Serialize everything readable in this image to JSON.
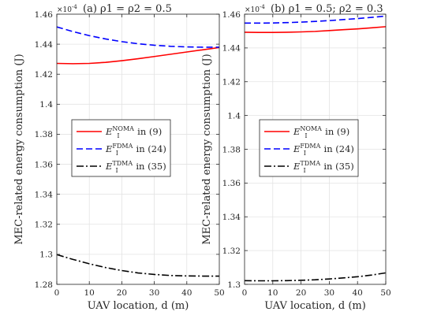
{
  "chart_data": [
    {
      "type": "line",
      "title": "(a) ρ1 = ρ2 = 0.5",
      "xlabel": "UAV location, d (m)",
      "ylabel": "MEC-related energy consumption (J)",
      "y_exponent": "×10^-4",
      "xlim": [
        0,
        50
      ],
      "ylim": [
        1.28,
        1.46
      ],
      "xticks": [
        0,
        10,
        20,
        30,
        40,
        50
      ],
      "yticks": [
        1.28,
        1.3,
        1.32,
        1.34,
        1.36,
        1.38,
        1.4,
        1.42,
        1.44,
        1.46
      ],
      "ytick_labels": [
        "1.28",
        "1.3",
        "1.32",
        "1.34",
        "1.36",
        "1.38",
        "1.4",
        "1.42",
        "1.44",
        "1.46"
      ],
      "grid": true,
      "legend_position": "center-right",
      "x": [
        0,
        5,
        10,
        15,
        20,
        25,
        30,
        35,
        40,
        45,
        50
      ],
      "series": [
        {
          "name": "E_I^NOMA in (9)",
          "color": "#ff0000",
          "dash": "solid",
          "values": [
            1.4272,
            1.427,
            1.4272,
            1.4279,
            1.429,
            1.4303,
            1.4318,
            1.4333,
            1.4348,
            1.4363,
            1.4378
          ]
        },
        {
          "name": "E_I^FDMA in (24)",
          "color": "#0000ff",
          "dash": "dashed",
          "values": [
            1.4515,
            1.4484,
            1.4457,
            1.4435,
            1.4417,
            1.4403,
            1.4393,
            1.4386,
            1.4382,
            1.438,
            1.438
          ]
        },
        {
          "name": "E_I^TDMA in (35)",
          "color": "#000000",
          "dash": "dashdot",
          "values": [
            1.2998,
            1.2966,
            1.2937,
            1.2912,
            1.2892,
            1.2876,
            1.2866,
            1.2859,
            1.2856,
            1.2855,
            1.2855
          ]
        }
      ]
    },
    {
      "type": "line",
      "title": "(b) ρ1 = 0.5; ρ2 = 0.3",
      "xlabel": "UAV location, d (m)",
      "ylabel": "MEC-related energy consumption (J)",
      "y_exponent": "×10^-4",
      "xlim": [
        0,
        50
      ],
      "ylim": [
        1.3,
        1.46
      ],
      "xticks": [
        0,
        10,
        20,
        30,
        40,
        50
      ],
      "yticks": [
        1.3,
        1.32,
        1.34,
        1.36,
        1.38,
        1.4,
        1.42,
        1.44,
        1.46
      ],
      "ytick_labels": [
        "1.3",
        "1.32",
        "1.34",
        "1.36",
        "1.38",
        "1.4",
        "1.42",
        "1.44",
        "1.46"
      ],
      "grid": true,
      "legend_position": "center-right",
      "x": [
        0,
        5,
        10,
        15,
        20,
        25,
        30,
        35,
        40,
        45,
        50
      ],
      "series": [
        {
          "name": "E_I^NOMA in (9)",
          "color": "#ff0000",
          "dash": "solid",
          "values": [
            1.4493,
            1.4492,
            1.4492,
            1.4493,
            1.4495,
            1.4498,
            1.4503,
            1.4508,
            1.4513,
            1.4519,
            1.4526
          ]
        },
        {
          "name": "E_I^FDMA in (24)",
          "color": "#0000ff",
          "dash": "dashed",
          "values": [
            1.4547,
            1.4547,
            1.4548,
            1.455,
            1.4553,
            1.4557,
            1.4562,
            1.4568,
            1.4574,
            1.4581,
            1.4589
          ]
        },
        {
          "name": "E_I^TDMA in (35)",
          "color": "#000000",
          "dash": "dashdot",
          "values": [
            1.3022,
            1.3021,
            1.3021,
            1.3022,
            1.3024,
            1.3027,
            1.3032,
            1.3038,
            1.3045,
            1.3055,
            1.3068
          ]
        }
      ]
    }
  ]
}
